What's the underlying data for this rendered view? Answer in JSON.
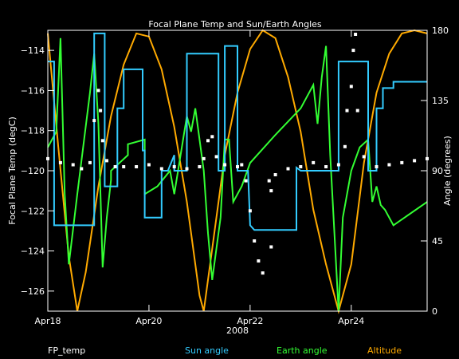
{
  "chart_data": {
    "type": "line",
    "title": "Focal Plane Temp and Sun/Earth Angles",
    "xlabel": "2008",
    "ylabel_left": "Focal Plane Temp (degC)",
    "ylabel_right": "Angle (degrees)",
    "x_range": [
      "2008-04-18T00:00",
      "2008-04-25T12:00"
    ],
    "x_ticks": [
      {
        "x": "2008-04-18",
        "label": "Apr18"
      },
      {
        "x": "2008-04-20",
        "label": "Apr20"
      },
      {
        "x": "2008-04-22",
        "label": "Apr22"
      },
      {
        "x": "2008-04-24",
        "label": "Apr24"
      }
    ],
    "ylim_left": [
      -127,
      -113
    ],
    "ylim_right": [
      0,
      180
    ],
    "y_left_ticks": [
      -126,
      -124,
      -122,
      -120,
      -118,
      -116,
      -114
    ],
    "y_right_ticks": [
      0,
      45,
      90,
      135,
      180
    ],
    "legend": [
      {
        "name": "FP_temp",
        "color": "#ffffff"
      },
      {
        "name": "Sun angle",
        "color": "#33ccff"
      },
      {
        "name": "Earth angle",
        "color": "#33ff33"
      },
      {
        "name": "Altitude",
        "color": "#ffaa00"
      }
    ],
    "series": [
      {
        "name": "FP_temp",
        "axis": "left",
        "style": "points",
        "color": "#ffffff",
        "points": [
          [
            "2008-04-18T00:00",
            -119.4
          ],
          [
            "2008-04-18T06:00",
            -119.6
          ],
          [
            "2008-04-18T12:00",
            -119.7
          ],
          [
            "2008-04-18T16:00",
            -119.9
          ],
          [
            "2008-04-18T20:00",
            -119.6
          ],
          [
            "2008-04-18T22:00",
            -117.5
          ],
          [
            "2008-04-19T00:00",
            -116.0
          ],
          [
            "2008-04-19T01:00",
            -117.0
          ],
          [
            "2008-04-19T02:00",
            -118.5
          ],
          [
            "2008-04-19T04:00",
            -119.5
          ],
          [
            "2008-04-19T08:00",
            -119.8
          ],
          [
            "2008-04-19T12:00",
            -119.8
          ],
          [
            "2008-04-19T18:00",
            -119.8
          ],
          [
            "2008-04-20T00:00",
            -119.7
          ],
          [
            "2008-04-20T06:00",
            -119.9
          ],
          [
            "2008-04-20T12:00",
            -119.8
          ],
          [
            "2008-04-20T18:00",
            -119.9
          ],
          [
            "2008-04-21T00:00",
            -119.8
          ],
          [
            "2008-04-21T02:00",
            -119.4
          ],
          [
            "2008-04-21T04:00",
            -118.5
          ],
          [
            "2008-04-21T06:00",
            -118.3
          ],
          [
            "2008-04-21T08:00",
            -119.3
          ],
          [
            "2008-04-21T12:00",
            -119.7
          ],
          [
            "2008-04-21T18:00",
            -119.8
          ],
          [
            "2008-04-21T20:00",
            -119.7
          ],
          [
            "2008-04-21T22:00",
            -120.5
          ],
          [
            "2008-04-22T00:00",
            -122.0
          ],
          [
            "2008-04-22T02:00",
            -123.5
          ],
          [
            "2008-04-22T04:00",
            -124.5
          ],
          [
            "2008-04-22T06:00",
            -125.1
          ],
          [
            "2008-04-22T09:00",
            -120.5
          ],
          [
            "2008-04-22T10:00",
            -121.0
          ],
          [
            "2008-04-22T10:00",
            -123.8
          ],
          [
            "2008-04-22T12:00",
            -120.2
          ],
          [
            "2008-04-22T18:00",
            -119.9
          ],
          [
            "2008-04-23T00:00",
            -119.8
          ],
          [
            "2008-04-23T06:00",
            -119.6
          ],
          [
            "2008-04-23T12:00",
            -119.8
          ],
          [
            "2008-04-23T18:00",
            -119.7
          ],
          [
            "2008-04-23T21:00",
            -118.8
          ],
          [
            "2008-04-23T22:00",
            -117.0
          ],
          [
            "2008-04-24T00:00",
            -115.8
          ],
          [
            "2008-04-24T01:00",
            -114.0
          ],
          [
            "2008-04-24T02:00",
            -113.2
          ],
          [
            "2008-04-24T03:00",
            -117.0
          ],
          [
            "2008-04-24T06:00",
            -119.3
          ],
          [
            "2008-04-24T12:00",
            -119.8
          ],
          [
            "2008-04-24T18:00",
            -119.7
          ],
          [
            "2008-04-25T00:00",
            -119.6
          ],
          [
            "2008-04-25T06:00",
            -119.5
          ],
          [
            "2008-04-25T12:00",
            -119.4
          ]
        ]
      },
      {
        "name": "Sun angle",
        "axis": "right",
        "style": "line",
        "color": "#33ccff",
        "points": [
          [
            "2008-04-18T00:00",
            160
          ],
          [
            "2008-04-18T03:00",
            160
          ],
          [
            "2008-04-18T03:00",
            55
          ],
          [
            "2008-04-18T22:00",
            55
          ],
          [
            "2008-04-18T22:00",
            178
          ],
          [
            "2008-04-19T03:00",
            178
          ],
          [
            "2008-04-19T03:00",
            80
          ],
          [
            "2008-04-19T09:00",
            80
          ],
          [
            "2008-04-19T09:00",
            130
          ],
          [
            "2008-04-19T12:00",
            130
          ],
          [
            "2008-04-19T12:00",
            155
          ],
          [
            "2008-04-19T21:00",
            155
          ],
          [
            "2008-04-19T21:00",
            103
          ],
          [
            "2008-04-19T22:00",
            103
          ],
          [
            "2008-04-19T22:00",
            60
          ],
          [
            "2008-04-20T06:00",
            60
          ],
          [
            "2008-04-20T06:00",
            90
          ],
          [
            "2008-04-20T09:00",
            90
          ],
          [
            "2008-04-20T12:00",
            100
          ],
          [
            "2008-04-20T12:00",
            90
          ],
          [
            "2008-04-20T18:00",
            90
          ],
          [
            "2008-04-20T18:00",
            165
          ],
          [
            "2008-04-21T09:00",
            165
          ],
          [
            "2008-04-21T09:00",
            90
          ],
          [
            "2008-04-21T12:00",
            90
          ],
          [
            "2008-04-21T12:00",
            170
          ],
          [
            "2008-04-21T18:00",
            170
          ],
          [
            "2008-04-21T18:00",
            90
          ],
          [
            "2008-04-21T23:00",
            90
          ],
          [
            "2008-04-22T00:00",
            55
          ],
          [
            "2008-04-22T02:00",
            52
          ],
          [
            "2008-04-22T12:00",
            52
          ],
          [
            "2008-04-22T22:00",
            52
          ],
          [
            "2008-04-22T22:00",
            92
          ],
          [
            "2008-04-23T00:00",
            90
          ],
          [
            "2008-04-23T06:00",
            90
          ],
          [
            "2008-04-23T12:00",
            90
          ],
          [
            "2008-04-23T18:00",
            90
          ],
          [
            "2008-04-23T18:00",
            160
          ],
          [
            "2008-04-24T08:00",
            160
          ],
          [
            "2008-04-24T08:00",
            90
          ],
          [
            "2008-04-24T12:00",
            90
          ],
          [
            "2008-04-24T12:00",
            130
          ],
          [
            "2008-04-24T15:00",
            130
          ],
          [
            "2008-04-24T15:00",
            143
          ],
          [
            "2008-04-24T20:00",
            143
          ],
          [
            "2008-04-24T20:00",
            147
          ],
          [
            "2008-04-25T12:00",
            147
          ]
        ]
      },
      {
        "name": "Earth angle",
        "axis": "right",
        "style": "line",
        "color": "#33ff33",
        "points": [
          [
            "2008-04-18T00:00",
            105
          ],
          [
            "2008-04-18T04:00",
            115
          ],
          [
            "2008-04-18T06:00",
            175
          ],
          [
            "2008-04-18T08:00",
            75
          ],
          [
            "2008-04-18T10:00",
            30
          ],
          [
            "2008-04-18T14:00",
            75
          ],
          [
            "2008-04-18T20:00",
            140
          ],
          [
            "2008-04-18T22:00",
            165
          ],
          [
            "2008-04-19T00:00",
            120
          ],
          [
            "2008-04-19T02:00",
            28
          ],
          [
            "2008-04-19T04:00",
            60
          ],
          [
            "2008-04-19T06:00",
            84
          ],
          [
            "2008-04-19T06:00",
            90
          ],
          [
            "2008-04-19T10:00",
            95
          ],
          [
            "2008-04-19T14:00",
            100
          ],
          [
            "2008-04-19T14:00",
            107
          ],
          [
            "2008-04-19T22:00",
            110
          ],
          [
            "2008-04-19T22:00",
            75
          ],
          [
            "2008-04-20T04:00",
            80
          ],
          [
            "2008-04-20T10:00",
            90
          ],
          [
            "2008-04-20T12:00",
            75
          ],
          [
            "2008-04-20T18:00",
            125
          ],
          [
            "2008-04-20T20:00",
            115
          ],
          [
            "2008-04-20T22:00",
            130
          ],
          [
            "2008-04-21T02:00",
            90
          ],
          [
            "2008-04-21T04:00",
            50
          ],
          [
            "2008-04-21T06:00",
            20
          ],
          [
            "2008-04-21T10:00",
            60
          ],
          [
            "2008-04-21T12:00",
            110
          ],
          [
            "2008-04-21T14:00",
            110
          ],
          [
            "2008-04-21T16:00",
            70
          ],
          [
            "2008-04-21T20:00",
            80
          ],
          [
            "2008-04-22T00:00",
            95
          ],
          [
            "2008-04-22T12:00",
            113
          ],
          [
            "2008-04-23T00:00",
            130
          ],
          [
            "2008-04-23T06:00",
            145
          ],
          [
            "2008-04-23T08:00",
            120
          ],
          [
            "2008-04-23T10:00",
            150
          ],
          [
            "2008-04-23T12:00",
            170
          ],
          [
            "2008-04-23T14:00",
            100
          ],
          [
            "2008-04-23T18:00",
            0
          ],
          [
            "2008-04-23T20:00",
            60
          ],
          [
            "2008-04-24T00:00",
            90
          ],
          [
            "2008-04-24T04:00",
            105
          ],
          [
            "2008-04-24T08:00",
            110
          ],
          [
            "2008-04-24T10:00",
            70
          ],
          [
            "2008-04-24T12:00",
            80
          ],
          [
            "2008-04-24T14:00",
            68
          ],
          [
            "2008-04-24T16:00",
            65
          ],
          [
            "2008-04-24T18:00",
            60
          ],
          [
            "2008-04-24T20:00",
            55
          ],
          [
            "2008-04-25T12:00",
            70
          ]
        ]
      },
      {
        "name": "Altitude",
        "axis": "right",
        "style": "line",
        "color": "#ffaa00",
        "points": [
          [
            "2008-04-18T00:00",
            178
          ],
          [
            "2008-04-18T05:00",
            105
          ],
          [
            "2008-04-18T10:00",
            35
          ],
          [
            "2008-04-18T14:00",
            0
          ],
          [
            "2008-04-18T18:00",
            25
          ],
          [
            "2008-04-19T00:00",
            80
          ],
          [
            "2008-04-19T06:00",
            125
          ],
          [
            "2008-04-19T12:00",
            158
          ],
          [
            "2008-04-19T18:00",
            178
          ],
          [
            "2008-04-20T00:00",
            176
          ],
          [
            "2008-04-20T06:00",
            155
          ],
          [
            "2008-04-20T12:00",
            118
          ],
          [
            "2008-04-20T18:00",
            70
          ],
          [
            "2008-04-21T00:00",
            10
          ],
          [
            "2008-04-21T02:00",
            0
          ],
          [
            "2008-04-21T06:00",
            40
          ],
          [
            "2008-04-21T12:00",
            100
          ],
          [
            "2008-04-21T18:00",
            140
          ],
          [
            "2008-04-22T00:00",
            168
          ],
          [
            "2008-04-22T06:00",
            180
          ],
          [
            "2008-04-22T12:00",
            175
          ],
          [
            "2008-04-22T18:00",
            150
          ],
          [
            "2008-04-23T00:00",
            115
          ],
          [
            "2008-04-23T06:00",
            65
          ],
          [
            "2008-04-23T12:00",
            30
          ],
          [
            "2008-04-23T18:00",
            0
          ],
          [
            "2008-04-24T00:00",
            30
          ],
          [
            "2008-04-24T06:00",
            95
          ],
          [
            "2008-04-24T12:00",
            140
          ],
          [
            "2008-04-24T18:00",
            165
          ],
          [
            "2008-04-25T00:00",
            178
          ],
          [
            "2008-04-25T06:00",
            180
          ],
          [
            "2008-04-25T12:00",
            178
          ]
        ]
      }
    ]
  }
}
